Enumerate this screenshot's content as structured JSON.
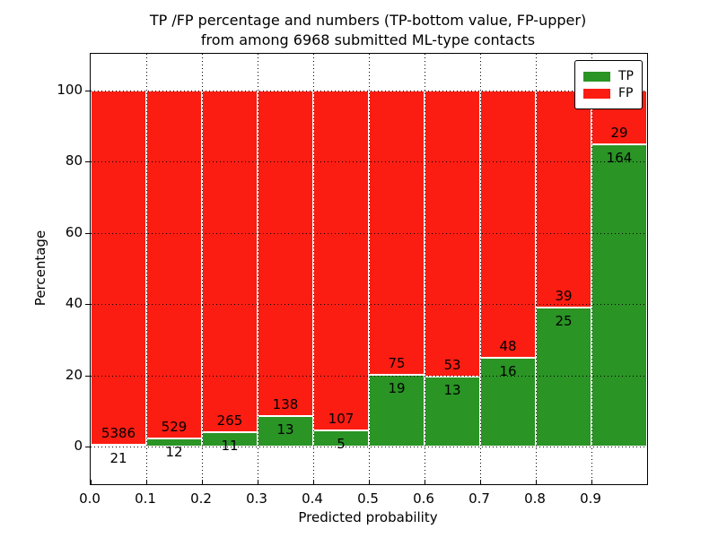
{
  "chart_data": {
    "type": "bar",
    "stacked": true,
    "normalized_to_percent": true,
    "title": "TP /FP percentage and numbers (TP-bottom value, FP-upper) from among 6968 submitted ML-type contacts",
    "title_lines": [
      "TP /FP percentage and numbers (TP-bottom value, FP-upper)",
      "from among 6968 submitted ML-type contacts"
    ],
    "xlabel": "Predicted probability",
    "ylabel": "Percentage",
    "bin_edges": [
      0.0,
      0.1,
      0.2,
      0.3,
      0.4,
      0.5,
      0.6,
      0.7,
      0.8,
      0.9,
      1.0
    ],
    "categories": [
      "0.0-0.1",
      "0.1-0.2",
      "0.2-0.3",
      "0.3-0.4",
      "0.4-0.5",
      "0.5-0.6",
      "0.6-0.7",
      "0.7-0.8",
      "0.8-0.9",
      "0.9-1.0"
    ],
    "series": [
      {
        "name": "TP",
        "color": "#2a9425",
        "counts": [
          21,
          12,
          11,
          13,
          5,
          19,
          13,
          16,
          25,
          164
        ]
      },
      {
        "name": "FP",
        "color": "#fb1d12",
        "counts": [
          5386,
          529,
          265,
          138,
          107,
          75,
          53,
          48,
          39,
          29
        ]
      }
    ],
    "tp_percent_of_bin": [
      0.39,
      2.22,
      3.99,
      8.61,
      4.46,
      20.21,
      19.7,
      25.0,
      39.06,
      84.97
    ],
    "xticks": [
      "0.0",
      "0.1",
      "0.2",
      "0.3",
      "0.4",
      "0.5",
      "0.6",
      "0.7",
      "0.8",
      "0.9"
    ],
    "yticks": [
      0,
      20,
      40,
      60,
      80,
      100
    ],
    "xlim": [
      0.0,
      1.0
    ],
    "ylim": [
      -10.6,
      110.3
    ],
    "grid": "dotted black, drawn above bars",
    "legend_position": "upper right",
    "bar_edge_color": "#ffffff",
    "frame_color": "#000000"
  }
}
